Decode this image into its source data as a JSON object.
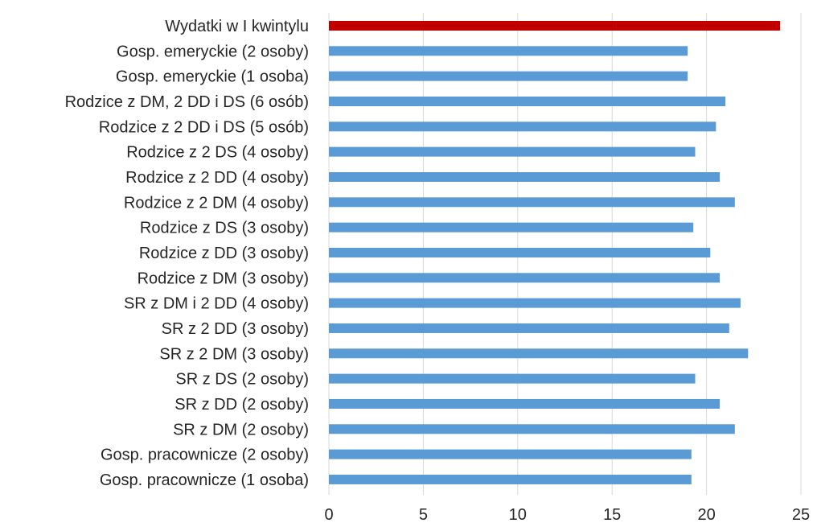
{
  "chart_data": {
    "type": "bar",
    "orientation": "horizontal",
    "categories": [
      "Wydatki w I kwintylu",
      "Gosp. emeryckie (2 osoby)",
      "Gosp. emeryckie (1 osoba)",
      "Rodzice z DM, 2 DD i DS (6 osób)",
      "Rodzice z 2 DD i DS (5 osób)",
      "Rodzice z 2 DS (4 osoby)",
      "Rodzice z 2 DD (4 osoby)",
      "Rodzice z 2 DM (4 osoby)",
      "Rodzice z DS (3 osoby)",
      "Rodzice z DD (3 osoby)",
      "Rodzice z DM (3 osoby)",
      "SR z DM i 2 DD (4 osoby)",
      "SR z 2 DD (3 osoby)",
      "SR z 2 DM (3 osoby)",
      "SR z DS (2 osoby)",
      "SR z DD (2 osoby)",
      "SR z DM (2 osoby)",
      "Gosp. pracownicze (2 osoby)",
      "Gosp. pracownicze (1 osoba)"
    ],
    "values": [
      23.9,
      19.0,
      19.0,
      21.0,
      20.5,
      19.4,
      20.7,
      21.5,
      19.3,
      20.2,
      20.7,
      21.8,
      21.2,
      22.2,
      19.4,
      20.7,
      21.5,
      19.2,
      19.2
    ],
    "highlight_index": 0,
    "colors": {
      "highlight": "#c00000",
      "default": "#5b9bd5",
      "grid": "#d9d9d9",
      "text": "#262626"
    },
    "xlim": [
      0,
      25
    ],
    "xticks": [
      0,
      5,
      10,
      15,
      20,
      25
    ],
    "grid": "vertical",
    "title": "",
    "xlabel": "",
    "ylabel": ""
  }
}
